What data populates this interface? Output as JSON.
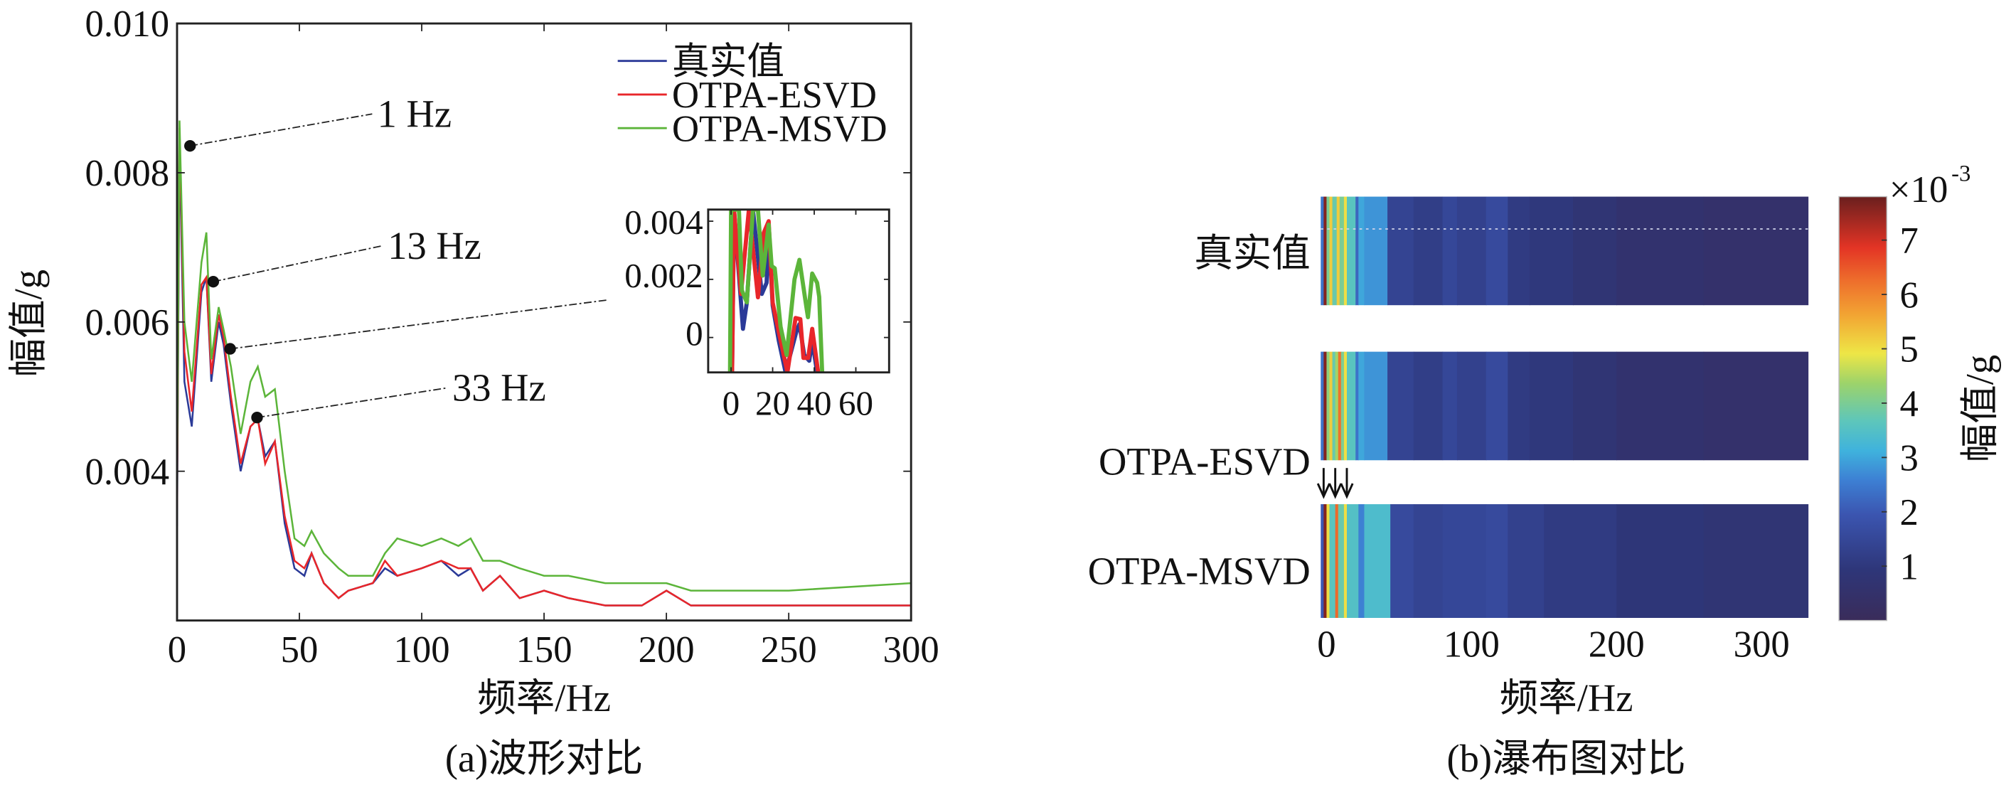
{
  "chart_data": [
    {
      "type": "line",
      "caption": "(a)波形对比",
      "xlabel": "频率/Hz",
      "ylabel": "幅值/g",
      "xlim": [
        0,
        300
      ],
      "ylim": [
        0.002,
        0.01
      ],
      "xticks": [
        0,
        50,
        100,
        150,
        200,
        250,
        300
      ],
      "xtick_labels": [
        "0",
        "50",
        "100",
        "150",
        "200",
        "250",
        "300"
      ],
      "yticks": [
        0.004,
        0.006,
        0.008,
        0.01
      ],
      "ytick_labels": [
        "0.004",
        "0.006",
        "0.008",
        "0.010"
      ],
      "legend_position": "top-right",
      "series": [
        {
          "name": "真实值",
          "color": "#2b3a98",
          "x": [
            0,
            1,
            3,
            6,
            10,
            12,
            14,
            17,
            19,
            22,
            26,
            30,
            33,
            36,
            40,
            44,
            48,
            52,
            55,
            60,
            66,
            70,
            80,
            85,
            90,
            100,
            108,
            115,
            120,
            125,
            132,
            140,
            150,
            160,
            175,
            190,
            200,
            210,
            250,
            300
          ],
          "y": [
            0.00326,
            0.0084,
            0.0052,
            0.0046,
            0.0064,
            0.0066,
            0.0052,
            0.006,
            0.0057,
            0.0049,
            0.004,
            0.0046,
            0.0047,
            0.0042,
            0.0044,
            0.0033,
            0.0027,
            0.0026,
            0.0029,
            0.0025,
            0.0023,
            0.0024,
            0.0025,
            0.0027,
            0.0026,
            0.0027,
            0.0028,
            0.0026,
            0.0027,
            0.0024,
            0.0026,
            0.0023,
            0.0024,
            0.0023,
            0.0022,
            0.0022,
            0.0024,
            0.0022,
            0.0022,
            0.0022
          ]
        },
        {
          "name": "OTPA-ESVD",
          "color": "#e8262a",
          "x": [
            0,
            1,
            3,
            6,
            10,
            12,
            14,
            17,
            19,
            22,
            26,
            30,
            33,
            36,
            40,
            44,
            48,
            52,
            55,
            60,
            66,
            70,
            80,
            85,
            90,
            100,
            108,
            115,
            120,
            125,
            132,
            140,
            150,
            160,
            175,
            190,
            200,
            210,
            250,
            300
          ],
          "y": [
            0.0035,
            0.0086,
            0.0056,
            0.0048,
            0.0065,
            0.0066,
            0.0053,
            0.0061,
            0.0058,
            0.005,
            0.0041,
            0.0046,
            0.0047,
            0.0041,
            0.0044,
            0.0034,
            0.0028,
            0.0027,
            0.0029,
            0.0025,
            0.0023,
            0.0024,
            0.0025,
            0.0028,
            0.0026,
            0.0027,
            0.0028,
            0.0027,
            0.0027,
            0.0024,
            0.0026,
            0.0023,
            0.0024,
            0.0023,
            0.0022,
            0.0022,
            0.0024,
            0.0022,
            0.0022,
            0.0022
          ]
        },
        {
          "name": "OTPA-MSVD",
          "color": "#5cb53a",
          "x": [
            0,
            1,
            3,
            6,
            10,
            12,
            14,
            17,
            19,
            22,
            26,
            30,
            33,
            36,
            40,
            44,
            48,
            52,
            55,
            60,
            66,
            70,
            80,
            85,
            90,
            100,
            108,
            115,
            120,
            125,
            132,
            140,
            150,
            160,
            175,
            190,
            200,
            210,
            250,
            300
          ],
          "y": [
            0.0038,
            0.0087,
            0.006,
            0.0052,
            0.0068,
            0.0072,
            0.0055,
            0.0062,
            0.0059,
            0.0054,
            0.0045,
            0.0052,
            0.0054,
            0.005,
            0.0051,
            0.004,
            0.0031,
            0.003,
            0.0032,
            0.0029,
            0.0027,
            0.0026,
            0.0026,
            0.0029,
            0.0031,
            0.003,
            0.0031,
            0.003,
            0.0031,
            0.0028,
            0.0028,
            0.0027,
            0.0026,
            0.0026,
            0.0025,
            0.0025,
            0.0025,
            0.0024,
            0.0024,
            0.0025
          ]
        }
      ],
      "annotations": [
        {
          "text": "1 Hz",
          "x": 5.3,
          "y": 0.00836
        },
        {
          "text": "13 Hz",
          "x": 14.8,
          "y": 0.00654
        },
        {
          "text": "",
          "x": 21.7,
          "y": 0.00564
        },
        {
          "text": "33 Hz",
          "x": 32.7,
          "y": 0.00472
        }
      ],
      "inset": {
        "xlim": [
          -11,
          76
        ],
        "ylim": [
          -0.0012,
          0.0044
        ],
        "xticks": [
          0,
          20,
          40,
          60
        ],
        "xtick_labels": [
          "0",
          "20",
          "40",
          "60"
        ],
        "yticks": [
          0,
          0.002,
          0.004
        ],
        "ytick_labels": [
          "0",
          "0.002",
          "0.004"
        ],
        "series": [
          {
            "name": "真实值",
            "color": "#2b3a98",
            "x": [
              0.5,
              1.4,
              5.7,
              7.6,
              10.5,
              14.8,
              17.1,
              18.1,
              20,
              22.9,
              26.2,
              31.4,
              32.9,
              35.2,
              37.6,
              39,
              41.4
            ],
            "y": [
              -0.0012,
              0.0044,
              0.0003,
              0.0012,
              0.0044,
              0.0015,
              0.00188,
              0.0037,
              0.0011,
              -0.0001,
              -0.0012,
              0.0002,
              0.00046,
              -0.0006,
              -0.0008,
              -0.0001,
              -0.0012
            ]
          },
          {
            "name": "OTPA-ESVD",
            "color": "#e8262a",
            "x": [
              0.5,
              1.4,
              4.8,
              8.6,
              12.9,
              15.7,
              18.1,
              20,
              22.9,
              27.1,
              31,
              33.3,
              34.8,
              37.1,
              39,
              41.9
            ],
            "y": [
              -0.0012,
              0.0044,
              0.0015,
              0.0044,
              0.00138,
              0.0036,
              0.004,
              0.0012,
              0.0002,
              -0.0012,
              0.00067,
              0.00063,
              -0.0007,
              -0.0007,
              0.0003,
              -0.0012
            ]
          },
          {
            "name": "OTPA-MSVD",
            "color": "#5cb53a",
            "x": [
              -0.5,
              0,
              3.8,
              5.2,
              7.6,
              10.5,
              12.9,
              15.2,
              18.1,
              19.5,
              21,
              23.8,
              26.7,
              30.5,
              32.9,
              36.2,
              37,
              39,
              41.4,
              42.4,
              43.8
            ],
            "y": [
              -0.0012,
              0.0044,
              0.0044,
              0.00162,
              0.00121,
              0.0044,
              0.0044,
              0.00213,
              0.00388,
              0.00246,
              0.00238,
              0.00038,
              -0.0006,
              0.002,
              0.00267,
              0.00104,
              0.0007,
              0.0022,
              0.00188,
              0.0014,
              -0.0012
            ]
          }
        ]
      }
    },
    {
      "type": "heatmap",
      "caption": "(b)瀑布图对比",
      "xlabel": "频率/Hz",
      "xlim": [
        -4,
        332
      ],
      "xticks": [
        0,
        100,
        200,
        300
      ],
      "xtick_labels": [
        "0",
        "100",
        "200",
        "300"
      ],
      "value_unit_scale": 0.001,
      "rows": [
        {
          "name": "真实值",
          "stripes": [
            [
              -4,
              -2,
              2.4
            ],
            [
              -2,
              0,
              7.6
            ],
            [
              0,
              2,
              4.0
            ],
            [
              2,
              4,
              5.2
            ],
            [
              4,
              7,
              3.8
            ],
            [
              7,
              9,
              5.2
            ],
            [
              9,
              12,
              4.0
            ],
            [
              12,
              14,
              5.0
            ],
            [
              14,
              20,
              3.6
            ],
            [
              20,
              22,
              2.2
            ],
            [
              22,
              26,
              3.0
            ],
            [
              26,
              42,
              2.8
            ],
            [
              42,
              60,
              1.4
            ],
            [
              60,
              80,
              1.2
            ],
            [
              80,
              90,
              1.5
            ],
            [
              90,
              110,
              1.3
            ],
            [
              110,
              125,
              1.6
            ],
            [
              125,
              140,
              1.1
            ],
            [
              140,
              170,
              1.0
            ],
            [
              170,
              200,
              0.8
            ],
            [
              200,
              260,
              0.6
            ],
            [
              260,
              332,
              0.5
            ]
          ]
        },
        {
          "name": "OTPA-ESVD",
          "stripes": [
            [
              -4,
              -2,
              2.4
            ],
            [
              -2,
              0,
              7.6
            ],
            [
              0,
              2,
              4.2
            ],
            [
              2,
              4,
              5.2
            ],
            [
              4,
              6,
              3.8
            ],
            [
              6,
              8,
              4.4
            ],
            [
              8,
              10,
              6.2
            ],
            [
              10,
              12,
              4.0
            ],
            [
              12,
              14,
              5.0
            ],
            [
              14,
              20,
              3.6
            ],
            [
              20,
              22,
              2.4
            ],
            [
              22,
              26,
              3.0
            ],
            [
              26,
              42,
              2.8
            ],
            [
              42,
              60,
              1.4
            ],
            [
              60,
              80,
              1.2
            ],
            [
              80,
              90,
              1.5
            ],
            [
              90,
              110,
              1.3
            ],
            [
              110,
              125,
              1.6
            ],
            [
              125,
              140,
              1.1
            ],
            [
              140,
              170,
              1.0
            ],
            [
              170,
              200,
              0.8
            ],
            [
              200,
              260,
              0.6
            ],
            [
              260,
              332,
              0.5
            ]
          ]
        },
        {
          "name": "OTPA-MSVD",
          "stripes": [
            [
              -4,
              -2,
              2.0
            ],
            [
              -2,
              0,
              7.6
            ],
            [
              0,
              2,
              5.0
            ],
            [
              2,
              6,
              3.6
            ],
            [
              6,
              8,
              6.3
            ],
            [
              8,
              12,
              3.8
            ],
            [
              12,
              14,
              5.0
            ],
            [
              14,
              22,
              3.5
            ],
            [
              22,
              26,
              2.6
            ],
            [
              26,
              44,
              3.4
            ],
            [
              44,
              60,
              1.6
            ],
            [
              60,
              80,
              1.4
            ],
            [
              80,
              110,
              1.5
            ],
            [
              110,
              125,
              1.6
            ],
            [
              125,
              150,
              1.3
            ],
            [
              150,
              200,
              1.1
            ],
            [
              200,
              260,
              0.9
            ],
            [
              260,
              332,
              0.8
            ]
          ]
        }
      ],
      "arrows_at": [
        -2,
        6,
        14
      ],
      "colorbar": {
        "range": [
          0,
          7.8
        ],
        "ticks": [
          1,
          2,
          3,
          4,
          5,
          6,
          7
        ],
        "tick_labels": [
          "1",
          "2",
          "3",
          "4",
          "5",
          "6",
          "7"
        ],
        "exponent_base": "×10",
        "exponent_power": "-3",
        "label": "幅值/g"
      }
    }
  ]
}
